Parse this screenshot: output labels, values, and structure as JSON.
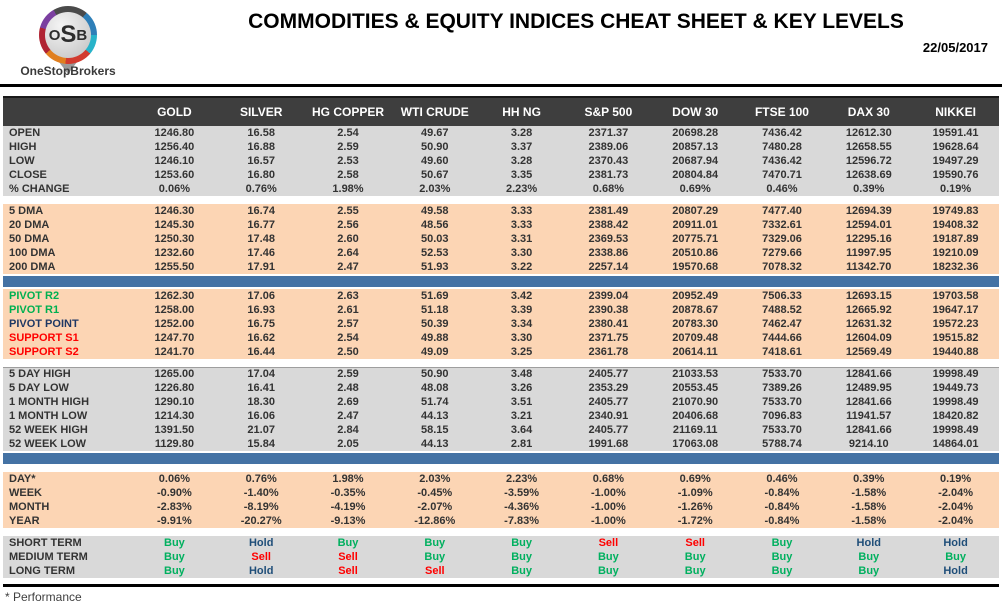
{
  "header": {
    "logo": {
      "mono_o": "O",
      "mono_s": "S",
      "mono_b": "B",
      "brand": "OneStopBrokers"
    },
    "title": "COMMODITIES & EQUITY INDICES CHEAT SHEET & KEY LEVELS",
    "date": "22/05/2017"
  },
  "colors": {
    "header_bg": "#3e3e3e",
    "section_gray": "#d9d9d9",
    "section_peach": "#fcd5b4",
    "divider_blue": "#4472a4",
    "buy": "#00b05f",
    "sell": "#ff0000",
    "hold": "#1f4e79",
    "pivot_resistance": "#00b050",
    "pivot_point": "#1f3864",
    "support": "#ff0000"
  },
  "table": {
    "columns": [
      "GOLD",
      "SILVER",
      "HG COPPER",
      "WTI CRUDE",
      "HH NG",
      "S&P 500",
      "DOW 30",
      "FTSE 100",
      "DAX 30",
      "NIKKEI"
    ],
    "sections": [
      {
        "id": "ohlc",
        "bg": "gray",
        "divider_after": "gap",
        "rows": [
          {
            "label": "OPEN",
            "values": [
              "1246.80",
              "16.58",
              "2.54",
              "49.67",
              "3.28",
              "2371.37",
              "20698.28",
              "7436.42",
              "12612.30",
              "19591.41"
            ]
          },
          {
            "label": "HIGH",
            "values": [
              "1256.40",
              "16.88",
              "2.59",
              "50.90",
              "3.37",
              "2389.06",
              "20857.13",
              "7480.28",
              "12658.55",
              "19628.64"
            ]
          },
          {
            "label": "LOW",
            "values": [
              "1246.10",
              "16.57",
              "2.53",
              "49.60",
              "3.28",
              "2370.43",
              "20687.94",
              "7436.42",
              "12596.72",
              "19497.29"
            ]
          },
          {
            "label": "CLOSE",
            "values": [
              "1253.60",
              "16.80",
              "2.58",
              "50.67",
              "3.35",
              "2381.73",
              "20804.84",
              "7470.71",
              "12638.69",
              "19590.76"
            ]
          },
          {
            "label": "% CHANGE",
            "values": [
              "0.06%",
              "0.76%",
              "1.98%",
              "2.03%",
              "2.23%",
              "0.68%",
              "0.69%",
              "0.46%",
              "0.39%",
              "0.19%"
            ]
          }
        ]
      },
      {
        "id": "moving-averages",
        "bg": "peach",
        "divider_after": "blue",
        "rows": [
          {
            "label": "5 DMA",
            "values": [
              "1246.30",
              "16.74",
              "2.55",
              "49.58",
              "3.33",
              "2381.49",
              "20807.29",
              "7477.40",
              "12694.39",
              "19749.83"
            ]
          },
          {
            "label": "20 DMA",
            "values": [
              "1245.30",
              "16.77",
              "2.56",
              "48.56",
              "3.33",
              "2388.42",
              "20911.01",
              "7332.61",
              "12594.01",
              "19408.32"
            ]
          },
          {
            "label": "50 DMA",
            "values": [
              "1250.30",
              "17.48",
              "2.60",
              "50.03",
              "3.31",
              "2369.53",
              "20775.71",
              "7329.06",
              "12295.16",
              "19187.89"
            ]
          },
          {
            "label": "100 DMA",
            "values": [
              "1232.60",
              "17.46",
              "2.64",
              "52.53",
              "3.30",
              "2338.86",
              "20510.86",
              "7279.66",
              "11997.95",
              "19210.09"
            ]
          },
          {
            "label": "200 DMA",
            "values": [
              "1255.50",
              "17.91",
              "2.47",
              "51.93",
              "3.22",
              "2257.14",
              "19570.68",
              "7078.32",
              "11342.70",
              "18232.36"
            ]
          }
        ]
      },
      {
        "id": "pivots",
        "bg": "peach",
        "divider_after": "gap-line",
        "rows": [
          {
            "label": "PIVOT R2",
            "label_color": "#00b050",
            "values": [
              "1262.30",
              "17.06",
              "2.63",
              "51.69",
              "3.42",
              "2399.04",
              "20952.49",
              "7506.33",
              "12693.15",
              "19703.58"
            ]
          },
          {
            "label": "PIVOT R1",
            "label_color": "#00b050",
            "values": [
              "1258.00",
              "16.93",
              "2.61",
              "51.18",
              "3.39",
              "2390.38",
              "20878.67",
              "7488.52",
              "12665.92",
              "19647.17"
            ]
          },
          {
            "label": "PIVOT POINT",
            "label_color": "#1f3864",
            "values": [
              "1252.00",
              "16.75",
              "2.57",
              "50.39",
              "3.34",
              "2380.41",
              "20783.30",
              "7462.47",
              "12631.32",
              "19572.23"
            ]
          },
          {
            "label": "SUPPORT S1",
            "label_color": "#ff0000",
            "values": [
              "1247.70",
              "16.62",
              "2.54",
              "49.88",
              "3.30",
              "2371.75",
              "20709.48",
              "7444.66",
              "12604.09",
              "19515.82"
            ]
          },
          {
            "label": "SUPPORT S2",
            "label_color": "#ff0000",
            "values": [
              "1241.70",
              "16.44",
              "2.50",
              "49.09",
              "3.25",
              "2361.78",
              "20614.11",
              "7418.61",
              "12569.49",
              "19440.88"
            ]
          }
        ]
      },
      {
        "id": "ranges",
        "bg": "gray",
        "divider_after": "blue-gap",
        "rows": [
          {
            "label": "5 DAY HIGH",
            "values": [
              "1265.00",
              "17.04",
              "2.59",
              "50.90",
              "3.48",
              "2405.77",
              "21033.53",
              "7533.70",
              "12841.66",
              "19998.49"
            ]
          },
          {
            "label": "5 DAY LOW",
            "values": [
              "1226.80",
              "16.41",
              "2.48",
              "48.08",
              "3.26",
              "2353.29",
              "20553.45",
              "7389.26",
              "12489.95",
              "19449.73"
            ]
          },
          {
            "label": "1 MONTH HIGH",
            "values": [
              "1290.10",
              "18.30",
              "2.69",
              "51.74",
              "3.51",
              "2405.77",
              "21070.90",
              "7533.70",
              "12841.66",
              "19998.49"
            ]
          },
          {
            "label": "1 MONTH LOW",
            "values": [
              "1214.30",
              "16.06",
              "2.47",
              "44.13",
              "3.21",
              "2340.91",
              "20406.68",
              "7096.83",
              "11941.57",
              "18420.82"
            ]
          },
          {
            "label": "52 WEEK HIGH",
            "values": [
              "1391.50",
              "21.07",
              "2.84",
              "58.15",
              "3.64",
              "2405.77",
              "21169.11",
              "7533.70",
              "12841.66",
              "19998.49"
            ]
          },
          {
            "label": "52 WEEK LOW",
            "values": [
              "1129.80",
              "15.84",
              "2.05",
              "44.13",
              "2.81",
              "1991.68",
              "17063.08",
              "5788.74",
              "9214.10",
              "14864.01"
            ]
          }
        ]
      },
      {
        "id": "performance",
        "bg": "peach",
        "divider_after": "gap",
        "rows": [
          {
            "label": "DAY*",
            "values": [
              "0.06%",
              "0.76%",
              "1.98%",
              "2.03%",
              "2.23%",
              "0.68%",
              "0.69%",
              "0.46%",
              "0.39%",
              "0.19%"
            ]
          },
          {
            "label": "WEEK",
            "values": [
              "-0.90%",
              "-1.40%",
              "-0.35%",
              "-0.45%",
              "-3.59%",
              "-1.00%",
              "-1.09%",
              "-0.84%",
              "-1.58%",
              "-2.04%"
            ]
          },
          {
            "label": "MONTH",
            "values": [
              "-2.83%",
              "-8.19%",
              "-4.19%",
              "-2.07%",
              "-4.36%",
              "-1.00%",
              "-1.26%",
              "-0.84%",
              "-1.58%",
              "-2.04%"
            ]
          },
          {
            "label": "YEAR",
            "values": [
              "-9.91%",
              "-20.27%",
              "-9.13%",
              "-12.86%",
              "-7.83%",
              "-1.00%",
              "-1.72%",
              "-0.84%",
              "-1.58%",
              "-2.04%"
            ]
          }
        ]
      },
      {
        "id": "ratings",
        "bg": "gray",
        "divider_after": "none",
        "rows": [
          {
            "label": "SHORT TERM",
            "values": [
              "Buy",
              "Hold",
              "Buy",
              "Buy",
              "Buy",
              "Sell",
              "Sell",
              "Buy",
              "Hold",
              "Hold"
            ]
          },
          {
            "label": "MEDIUM TERM",
            "values": [
              "Buy",
              "Sell",
              "Sell",
              "Buy",
              "Buy",
              "Buy",
              "Buy",
              "Buy",
              "Buy",
              "Buy"
            ]
          },
          {
            "label": "LONG TERM",
            "values": [
              "Buy",
              "Hold",
              "Sell",
              "Sell",
              "Buy",
              "Buy",
              "Buy",
              "Buy",
              "Buy",
              "Hold"
            ]
          }
        ]
      }
    ]
  },
  "footer": {
    "note": "* Performance"
  }
}
